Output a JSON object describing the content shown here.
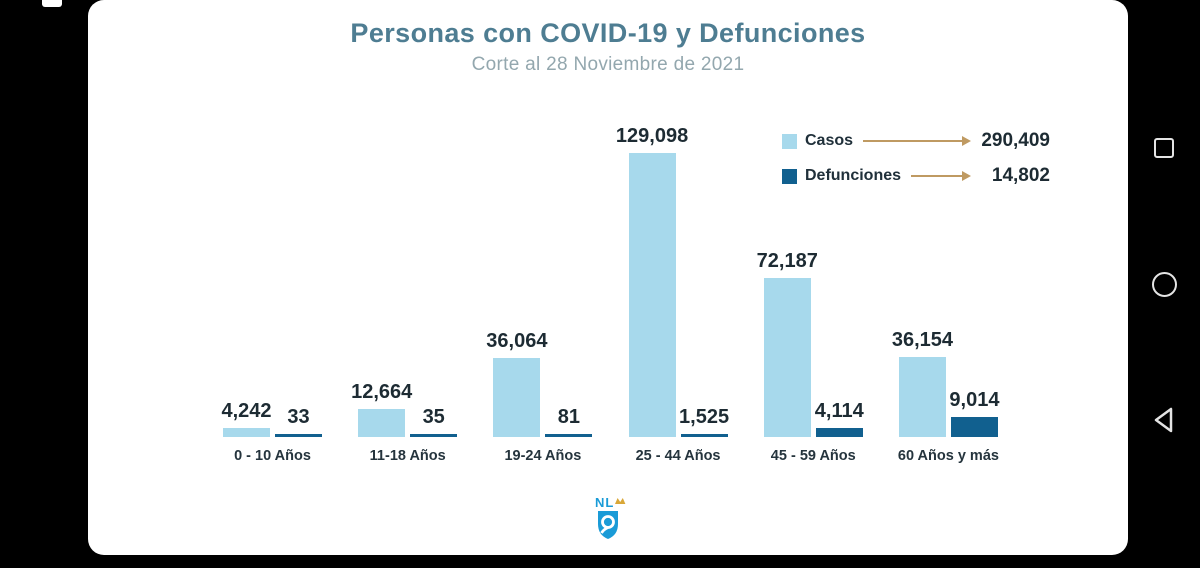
{
  "screen": {
    "background": "#000000",
    "card_background": "#ffffff"
  },
  "header": {
    "title": "Personas con COVID-19 y Defunciones",
    "subtitle": "Corte al 28 Noviembre de 2021",
    "title_color": "#4e7d92",
    "subtitle_color": "#93a7ae"
  },
  "chart_data": {
    "type": "bar",
    "title": "Personas con COVID-19 y Defunciones",
    "subtitle": "Corte al 28 Noviembre de 2021",
    "categories": [
      "0 - 10 Años",
      "11-18 Años",
      "19-24 Años",
      "25 - 44 Años",
      "45 - 59 Años",
      "60 Años y más"
    ],
    "series": [
      {
        "name": "Casos",
        "color": "#a7d9ec",
        "values": [
          4242,
          12664,
          36064,
          129098,
          72187,
          36154
        ],
        "value_labels": [
          "4,242",
          "12,664",
          "36,064",
          "129,098",
          "72,187",
          "36,154"
        ],
        "total": 290409,
        "total_label": "290,409"
      },
      {
        "name": "Defunciones",
        "color": "#11608f",
        "values": [
          33,
          35,
          81,
          1525,
          4114,
          9014
        ],
        "value_labels": [
          "33",
          "35",
          "81",
          "1,525",
          "4,114",
          "9,014"
        ],
        "total": 14802,
        "total_label": "14,802"
      }
    ],
    "ylim": [
      0,
      130000
    ],
    "grid": false,
    "legend_position": "top-right",
    "legend_arrow_color": "#bf9a62"
  },
  "logo": {
    "name": "Nuevo Leon government logo",
    "text": "NL",
    "shield_color": "#1a9bd7",
    "crown_color": "#d9a738"
  },
  "nav_bar": {
    "buttons": [
      {
        "name": "recents",
        "icon": "square-outline"
      },
      {
        "name": "home",
        "icon": "circle-outline"
      },
      {
        "name": "back",
        "icon": "triangle-left-outline"
      }
    ]
  }
}
